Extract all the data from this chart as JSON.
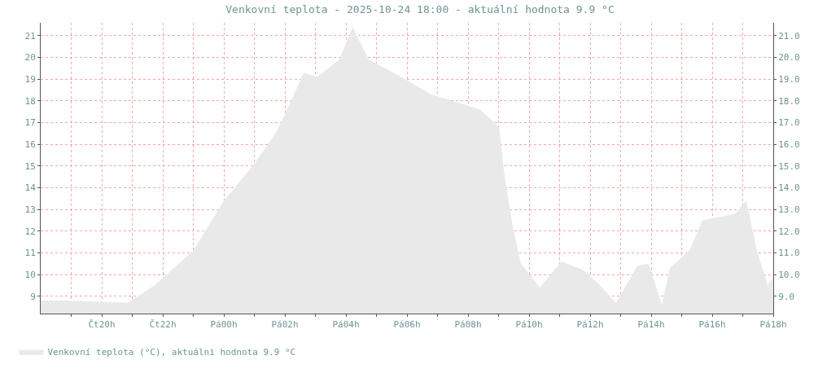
{
  "chart_data": {
    "type": "area",
    "title": "Venkovní teplota - 2025-10-24 18:00 - aktuální hodnota 9.9 °C",
    "x": [
      "2025-10-23T18:00",
      "2025-10-23T18:50",
      "2025-10-23T20:51",
      "2025-10-23T21:44",
      "2025-10-23T23:00",
      "2025-10-24T00:00",
      "2025-10-24T01:00",
      "2025-10-24T01:44",
      "2025-10-24T02:20",
      "2025-10-24T02:37",
      "2025-10-24T03:04",
      "2025-10-24T03:47",
      "2025-10-24T04:13",
      "2025-10-24T04:45",
      "2025-10-24T05:49",
      "2025-10-24T06:48",
      "2025-10-24T08:24",
      "2025-10-24T09:01",
      "2025-10-24T09:12",
      "2025-10-24T09:28",
      "2025-10-24T09:44",
      "2025-10-24T10:21",
      "2025-10-24T11:04",
      "2025-10-24T11:47",
      "2025-10-24T12:19",
      "2025-10-24T12:51",
      "2025-10-24T13:33",
      "2025-10-24T13:55",
      "2025-10-24T14:21",
      "2025-10-24T14:37",
      "2025-10-24T15:15",
      "2025-10-24T15:41",
      "2025-10-24T16:45",
      "2025-10-24T17:07",
      "2025-10-24T17:28",
      "2025-10-24T17:49",
      "2025-10-24T18:00"
    ],
    "series": [
      {
        "name": "Venkovní teplota (°C), aktuálni hodnota 9.9 °C",
        "color": "#e9e9e9",
        "values": [
          8.8,
          8.8,
          8.7,
          9.5,
          11.1,
          13.4,
          15.1,
          16.6,
          18.4,
          19.3,
          19.1,
          19.9,
          21.4,
          19.9,
          19.1,
          18.3,
          17.6,
          16.8,
          14.5,
          12.2,
          10.5,
          9.4,
          10.6,
          10.2,
          9.5,
          8.7,
          10.4,
          10.5,
          8.6,
          10.3,
          11.1,
          12.5,
          12.8,
          13.4,
          11.1,
          9.5,
          9.9
        ]
      }
    ],
    "xlim": [
      "2025-10-23T18:00",
      "2025-10-24T18:00"
    ],
    "xticks": [
      {
        "value": "2025-10-23T19:00",
        "label": null
      },
      {
        "value": "2025-10-23T20:00",
        "label": "Čt20h"
      },
      {
        "value": "2025-10-23T21:00",
        "label": null
      },
      {
        "value": "2025-10-23T22:00",
        "label": "Čt22h"
      },
      {
        "value": "2025-10-23T23:00",
        "label": null
      },
      {
        "value": "2025-10-24T00:00",
        "label": "Pá00h"
      },
      {
        "value": "2025-10-24T01:00",
        "label": null
      },
      {
        "value": "2025-10-24T02:00",
        "label": "Pá02h"
      },
      {
        "value": "2025-10-24T03:00",
        "label": null
      },
      {
        "value": "2025-10-24T04:00",
        "label": "Pá04h"
      },
      {
        "value": "2025-10-24T05:00",
        "label": null
      },
      {
        "value": "2025-10-24T06:00",
        "label": "Pá06h"
      },
      {
        "value": "2025-10-24T07:00",
        "label": null
      },
      {
        "value": "2025-10-24T08:00",
        "label": "Pá08h"
      },
      {
        "value": "2025-10-24T09:00",
        "label": null
      },
      {
        "value": "2025-10-24T10:00",
        "label": "Pá10h"
      },
      {
        "value": "2025-10-24T11:00",
        "label": null
      },
      {
        "value": "2025-10-24T12:00",
        "label": "Pá12h"
      },
      {
        "value": "2025-10-24T13:00",
        "label": null
      },
      {
        "value": "2025-10-24T14:00",
        "label": "Pá14h"
      },
      {
        "value": "2025-10-24T15:00",
        "label": null
      },
      {
        "value": "2025-10-24T16:00",
        "label": "Pá16h"
      },
      {
        "value": "2025-10-24T17:00",
        "label": null
      },
      {
        "value": "2025-10-24T18:00",
        "label": "Pá18h"
      }
    ],
    "ylim": [
      8.2,
      21.6
    ],
    "yticks": [
      9,
      10,
      11,
      12,
      13,
      14,
      15,
      16,
      17,
      18,
      19,
      20,
      21
    ],
    "y2lim": [
      8.2,
      21.6
    ],
    "y2ticks": [
      {
        "value": 9,
        "label": "9.0"
      },
      {
        "value": 10,
        "label": "10.0"
      },
      {
        "value": 11,
        "label": "11.0"
      },
      {
        "value": 12,
        "label": "12.0"
      },
      {
        "value": 13,
        "label": "13.0"
      },
      {
        "value": 14,
        "label": "14.0"
      },
      {
        "value": 15,
        "label": "15.0"
      },
      {
        "value": 16,
        "label": "16.0"
      },
      {
        "value": 17,
        "label": "17.0"
      },
      {
        "value": 18,
        "label": "18.0"
      },
      {
        "value": 19,
        "label": "19.0"
      },
      {
        "value": 20,
        "label": "20.0"
      },
      {
        "value": 21,
        "label": "21.0"
      }
    ],
    "grid": true,
    "legend": "bottom left"
  }
}
